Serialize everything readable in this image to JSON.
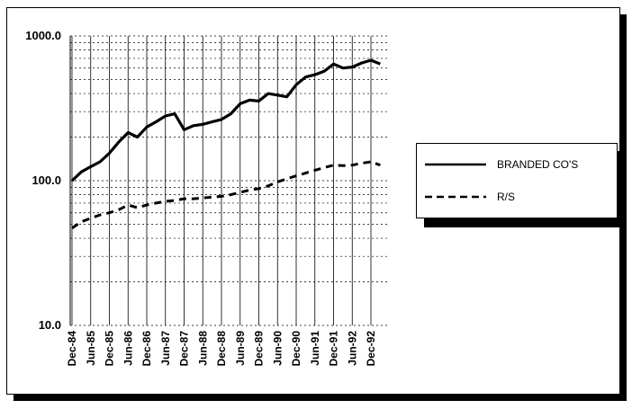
{
  "chart_data": {
    "type": "line",
    "categories": [
      "Dec-84",
      null,
      "Jun-85",
      null,
      "Dec-85",
      null,
      "Jun-86",
      null,
      "Dec-86",
      null,
      "Jun-87",
      null,
      "Dec-87",
      null,
      "Jun-88",
      null,
      "Dec-88",
      null,
      "Jun-89",
      null,
      "Dec-89",
      null,
      "Jun-90",
      null,
      "Dec-90",
      null,
      "Jun-91",
      null,
      "Dec-91",
      null,
      "Jun-92",
      null,
      "Dec-92",
      null
    ],
    "series": [
      {
        "name": "BRANDED CO'S",
        "color": "#000000",
        "dash": false,
        "values": [
          100,
          115,
          125,
          135,
          155,
          185,
          215,
          200,
          235,
          255,
          280,
          290,
          225,
          240,
          245,
          255,
          265,
          290,
          340,
          360,
          355,
          400,
          390,
          380,
          460,
          520,
          540,
          570,
          640,
          600,
          610,
          650,
          680,
          640
        ]
      },
      {
        "name": "R/S",
        "color": "#000000",
        "dash": true,
        "values": [
          47,
          52,
          55,
          58,
          60,
          63,
          68,
          65,
          68,
          70,
          72,
          73,
          75,
          75,
          76,
          77,
          78,
          80,
          83,
          86,
          88,
          92,
          98,
          103,
          108,
          113,
          118,
          123,
          128,
          127,
          128,
          132,
          135,
          128
        ]
      }
    ],
    "log_scale": true,
    "ylim": [
      10,
      1000
    ],
    "yticks": [
      {
        "value": 10,
        "label": "10.0"
      },
      {
        "value": 100,
        "label": "100.0"
      },
      {
        "value": 1000,
        "label": "1000.0"
      }
    ],
    "minor_yticks": [
      20,
      30,
      40,
      50,
      60,
      70,
      80,
      90,
      200,
      300,
      400,
      500,
      600,
      700,
      800,
      900
    ],
    "grid": true,
    "legend": "right"
  }
}
